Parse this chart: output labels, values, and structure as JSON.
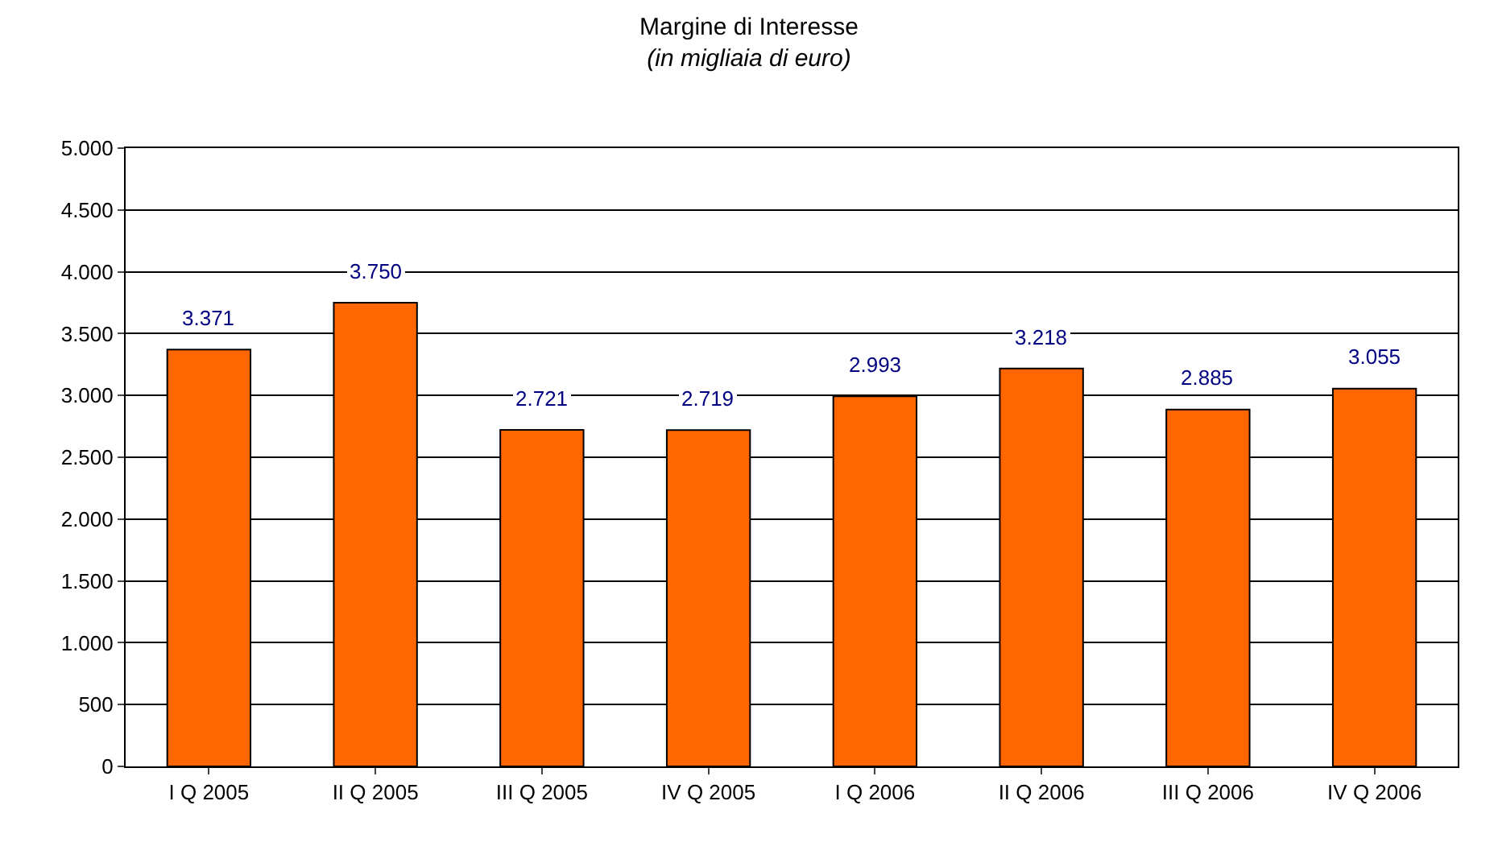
{
  "chart_data": {
    "type": "bar",
    "title": "Margine di Interesse",
    "subtitle": "(in migliaia di euro)",
    "categories": [
      "I Q 2005",
      "II Q 2005",
      "III Q 2005",
      "IV Q 2005",
      "I Q 2006",
      "II Q 2006",
      "III Q 2006",
      "IV Q 2006"
    ],
    "values": [
      3371,
      3750,
      2721,
      2719,
      2993,
      3218,
      2885,
      3055
    ],
    "value_labels": [
      "3.371",
      "3.750",
      "2.721",
      "2.719",
      "2.993",
      "3.218",
      "2.885",
      "3.055"
    ],
    "color": "#ff6600",
    "ylim": [
      0,
      5000
    ],
    "yticks": [
      0,
      500,
      {
        "value": 1000,
        "label": "1.000"
      },
      {
        "value": 1500,
        "label": "1.500"
      },
      {
        "value": 2000,
        "label": "2.000"
      },
      {
        "value": 2500,
        "label": "2.500"
      },
      {
        "value": 3000,
        "label": "3.000"
      },
      {
        "value": 3500,
        "label": "3.500"
      },
      {
        "value": 4000,
        "label": "4.000"
      },
      {
        "value": 4500,
        "label": "4.500"
      },
      {
        "value": 5000,
        "label": "5.000"
      }
    ],
    "grid": "y",
    "legend": false
  }
}
